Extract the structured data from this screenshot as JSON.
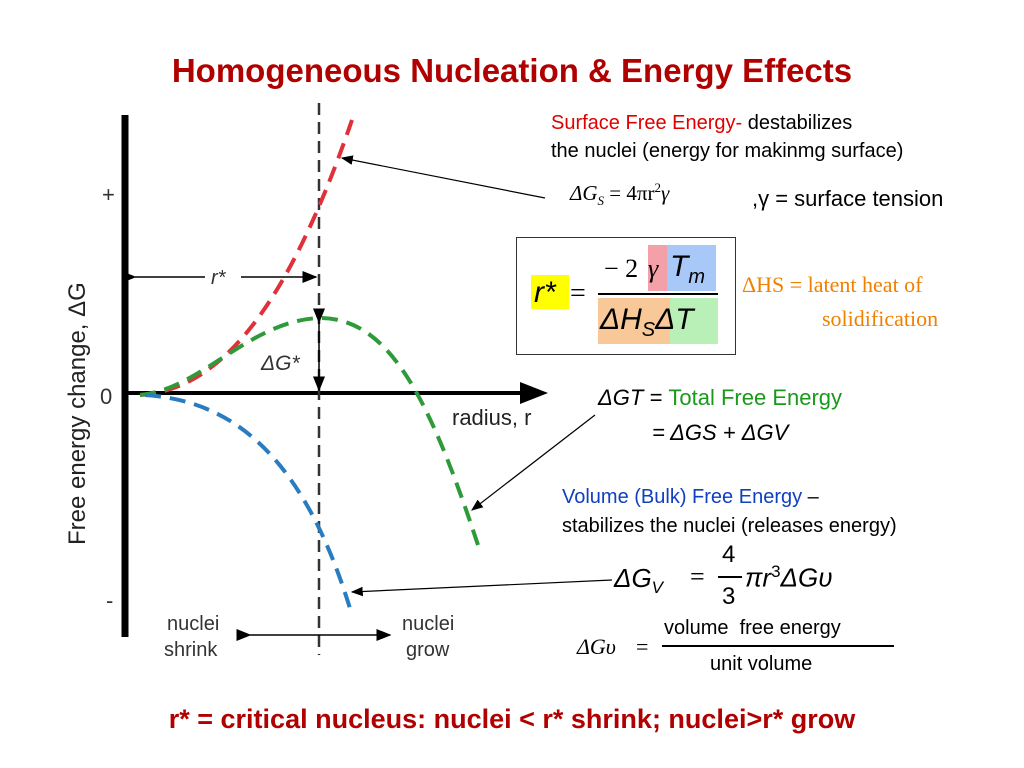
{
  "title": "Homogeneous Nucleation & Energy Effects",
  "graph": {
    "ylabel": "Free energy change, ΔG",
    "xlabel": "radius, r",
    "plus": "+",
    "zero": "0",
    "minus": "-",
    "rstar": "r*",
    "dgstar": "ΔG*",
    "shrink_line1": "nuclei",
    "shrink_line2": "shrink",
    "grow_line1": "nuclei",
    "grow_line2": "grow"
  },
  "surface": {
    "label_colored": "Surface Free Energy-",
    "label_rest": " destabilizes",
    "line2": "the nuclei (energy for makinmg surface)",
    "eq_lhs": "ΔG",
    "eq_sub": "S",
    "eq_rhs": "= 4πr",
    "eq_exp": "2",
    "eq_gamma": "γ",
    "tension": ",γ = surface tension"
  },
  "rstar_eq": {
    "lhs": "r*",
    "eq": "=",
    "num_sign": "− 2",
    "num_gamma": "γ",
    "num_tm": "T",
    "num_tm_sub": "m",
    "den_dh": "ΔH",
    "den_dh_sub": "S",
    "den_dt": "ΔT"
  },
  "latent": {
    "line1": "ΔHS = latent heat of",
    "line2": "solidification"
  },
  "total": {
    "lhs": "ΔGT = ",
    "label": "Total Free Energy",
    "line2": "= ΔGS + ΔGV"
  },
  "volume": {
    "label_colored": "Volume (Bulk) Free Energy",
    "label_rest": " –",
    "line2": "stabilizes the nuclei (releases energy)",
    "eq_lhs": "ΔG",
    "eq_sub": "V",
    "eq_eq": "=",
    "frac_num": "4",
    "frac_den": "3",
    "eq_rhs": "πr",
    "eq_exp": "3",
    "eq_tail": "ΔGυ"
  },
  "gv_def": {
    "lhs": "ΔGυ",
    "eq": "=",
    "num": "volume  free energy",
    "den": "unit volume"
  },
  "footer": "r* = critical nucleus: nuclei < r* shrink;  nuclei>r* grow",
  "colors": {
    "title": "#b00000",
    "surface_curve": "#e0303a",
    "total_curve": "#2e9a3a",
    "volume_curve": "#2a7cc0",
    "highlight_yellow": "#ffff00",
    "highlight_pink": "#f4a0a8",
    "highlight_blue": "#a8c8f8",
    "highlight_orange": "#f8c898",
    "highlight_green": "#b8f0b8"
  }
}
